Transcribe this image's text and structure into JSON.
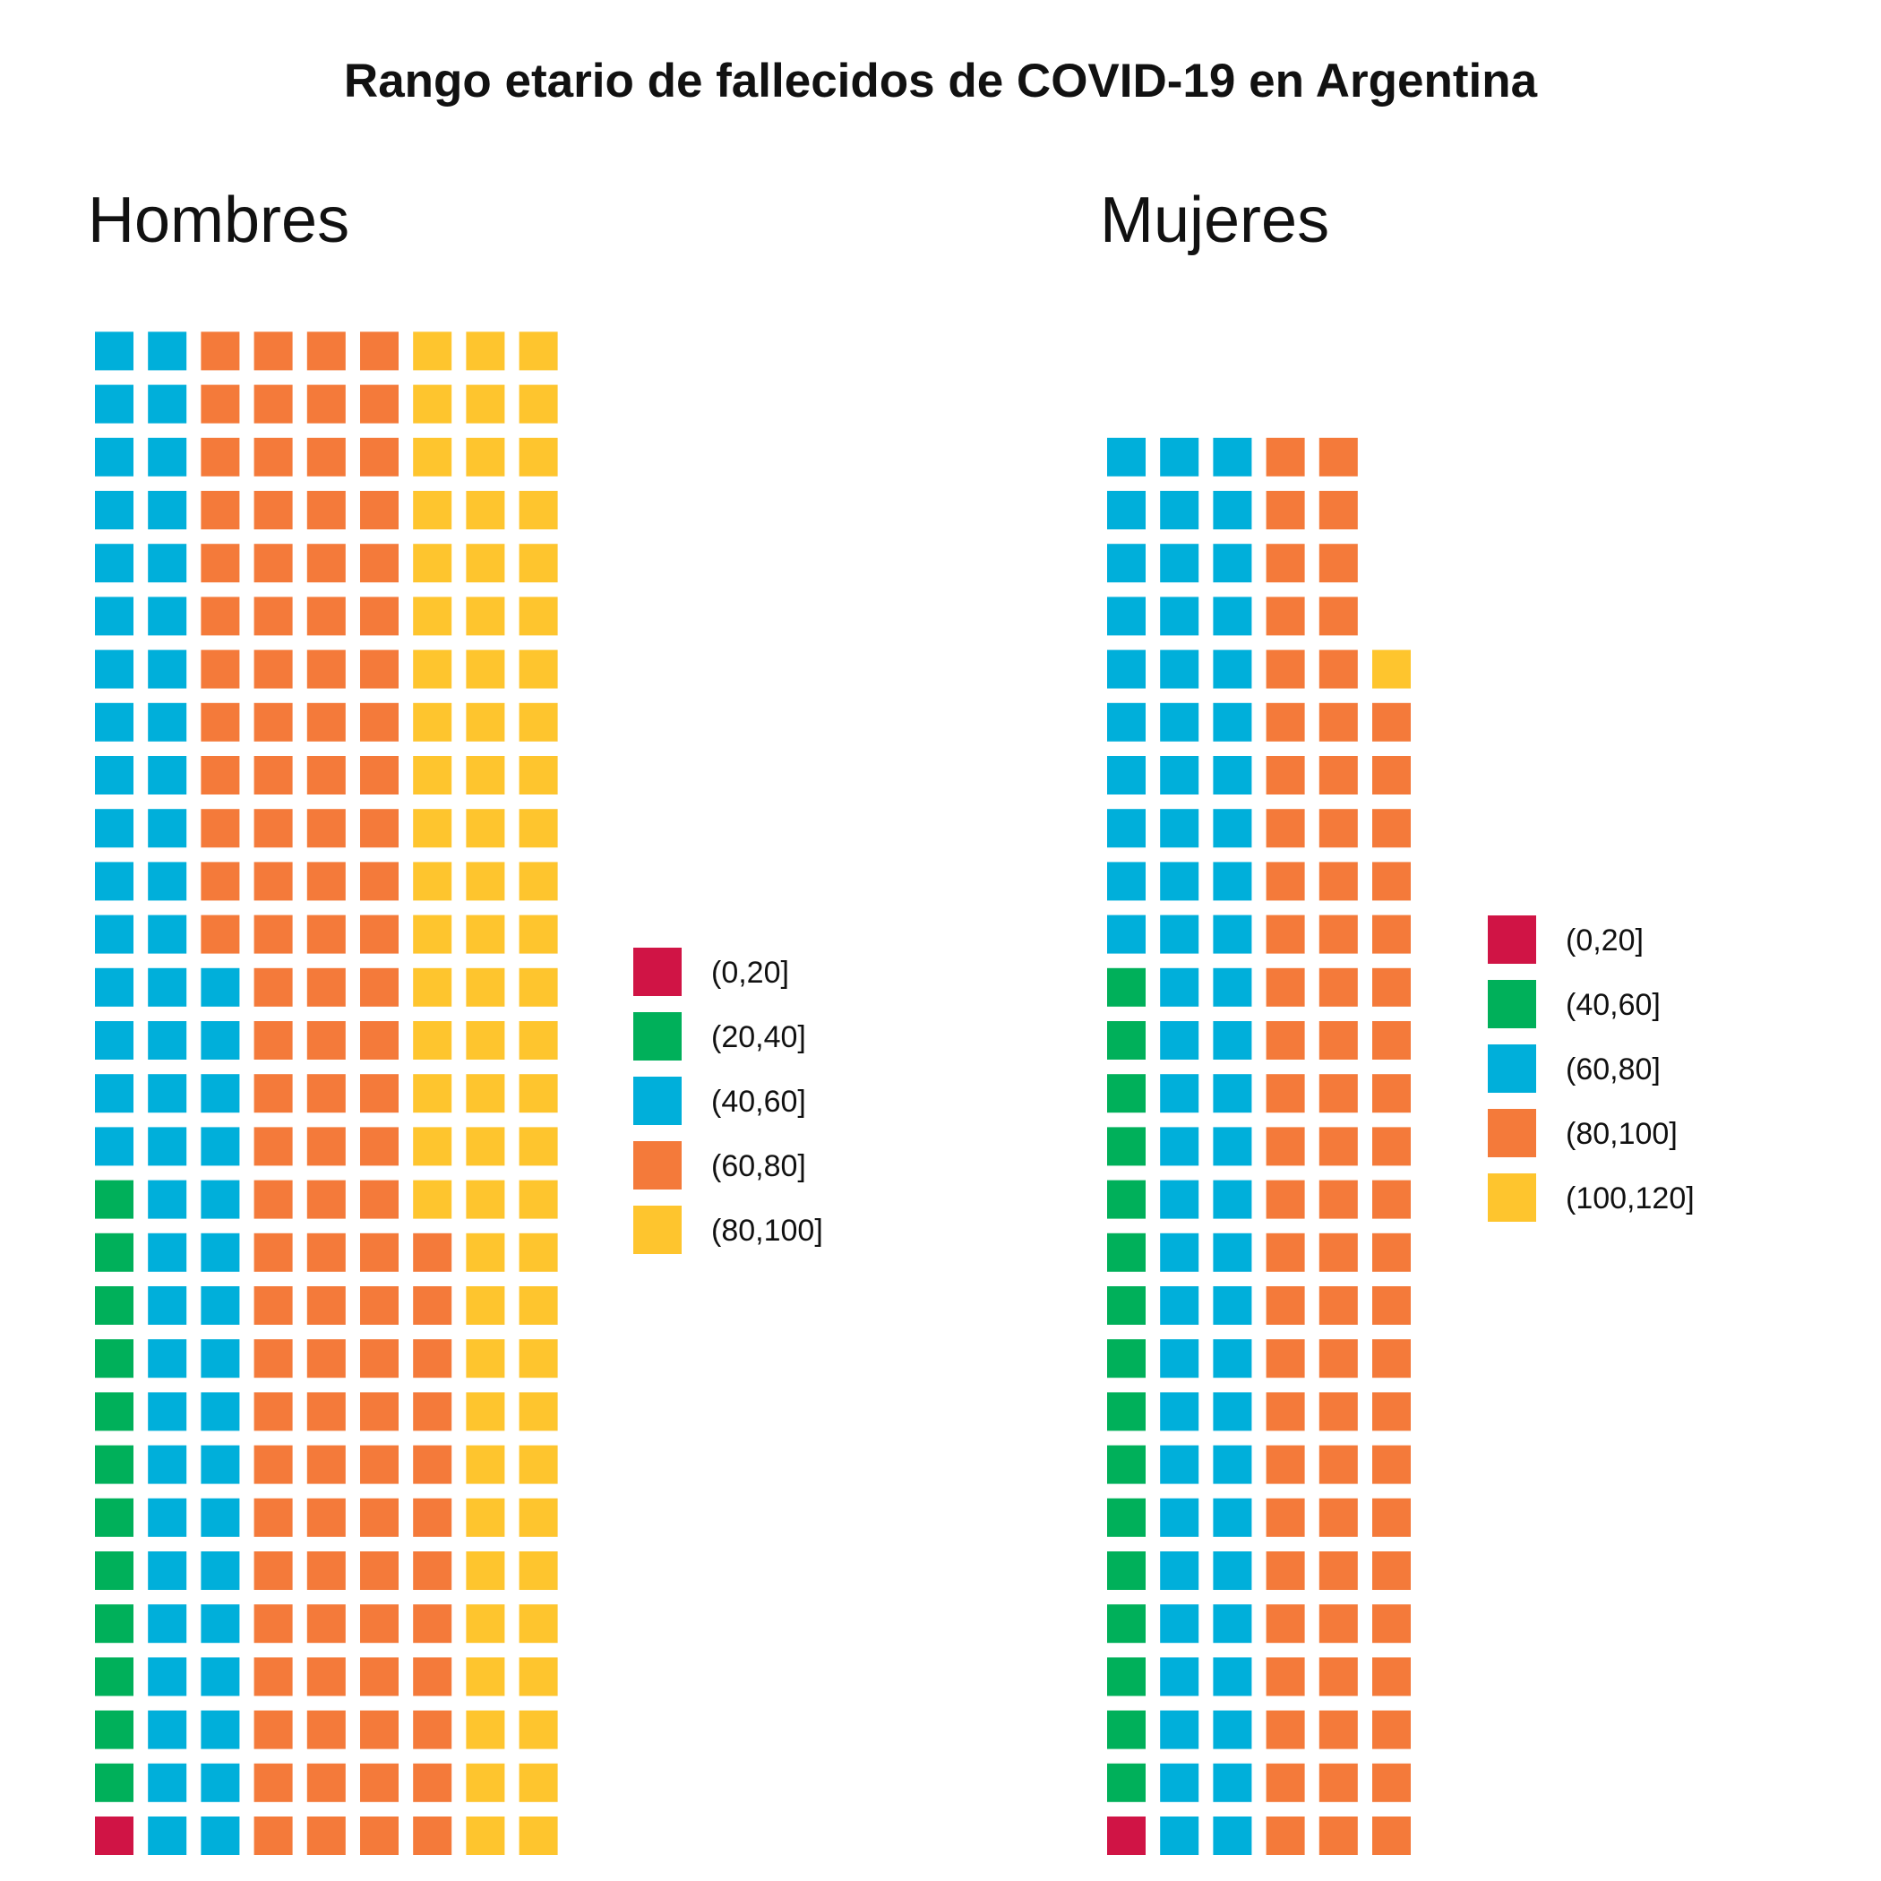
{
  "title": "Rango etario de fallecidos de COVID-19 en Argentina",
  "colors": {
    "red": "#d01445",
    "green": "#00b05a",
    "blue": "#00afda",
    "orange": "#f47a3a",
    "yellow": "#fec52e"
  },
  "chart_data": [
    {
      "type": "waffle",
      "title": "Hombres",
      "legend_position": "right",
      "columns": 9,
      "series": [
        {
          "name": "(0,20]",
          "color": "red",
          "count": 1
        },
        {
          "name": "(20,40]",
          "color": "green",
          "count": 12
        },
        {
          "name": "(40,60]",
          "color": "blue",
          "count": 62
        },
        {
          "name": "(60,80]",
          "color": "orange",
          "count": 111
        },
        {
          "name": "(80,100]",
          "color": "yellow",
          "count": 75
        }
      ]
    },
    {
      "type": "waffle",
      "title": "Mujeres",
      "legend_position": "right",
      "columns": 6,
      "series": [
        {
          "name": "(0,20]",
          "color": "red",
          "count": 1
        },
        {
          "name": "(40,60]",
          "color": "green",
          "count": 16
        },
        {
          "name": "(60,80]",
          "color": "blue",
          "count": 64
        },
        {
          "name": "(80,100]",
          "color": "orange",
          "count": 76
        },
        {
          "name": "(100,120]",
          "color": "yellow",
          "count": 1
        }
      ]
    }
  ]
}
